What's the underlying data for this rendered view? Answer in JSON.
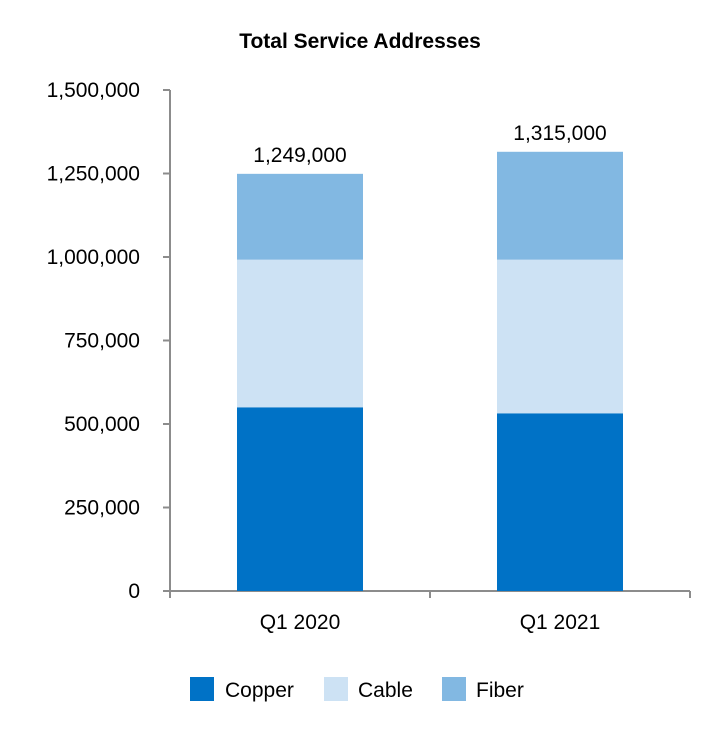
{
  "chart_data": {
    "type": "bar",
    "stacked": true,
    "title": "Total Service Addresses",
    "xlabel": "",
    "ylabel": "",
    "categories": [
      "Q1 2020",
      "Q1 2021"
    ],
    "series": [
      {
        "name": "Copper",
        "color": "#0072c6",
        "values": [
          550000,
          532000
        ]
      },
      {
        "name": "Cable",
        "color": "#cde2f4",
        "values": [
          442000,
          460000
        ]
      },
      {
        "name": "Fiber",
        "color": "#82b8e2",
        "values": [
          257000,
          323000
        ]
      }
    ],
    "totals": [
      "1,249,000",
      "1,315,000"
    ],
    "ylim": [
      0,
      1500000
    ],
    "yticks": [
      0,
      250000,
      500000,
      750000,
      1000000,
      1250000,
      1500000
    ],
    "ytick_labels": [
      "0",
      "250,000",
      "500,000",
      "750,000",
      "1,000,000",
      "1,250,000",
      "1,500,000"
    ],
    "grid": false,
    "legend_position": "bottom",
    "axis_color": "#8c8c8c"
  }
}
